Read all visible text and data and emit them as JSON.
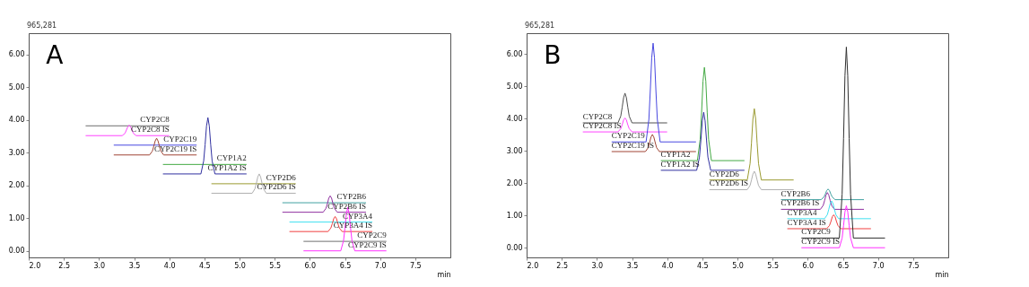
{
  "chart_data": [
    {
      "type": "line",
      "title": "A",
      "xlabel": "min",
      "annotations": [
        "965,281"
      ],
      "xlim": [
        2.0,
        8.0
      ],
      "ylim": [
        -0.2,
        6.65
      ],
      "xticks": [
        {
          "value": 2,
          "label": "2.0"
        },
        {
          "value": 2.5,
          "label": "2.5"
        },
        {
          "value": 3,
          "label": "3.0"
        },
        {
          "value": 3.5,
          "label": "3.5"
        },
        {
          "value": 4,
          "label": "4.0"
        },
        {
          "value": 4.5,
          "label": "4.5"
        },
        {
          "value": 5,
          "label": "5.0"
        },
        {
          "value": 5.5,
          "label": "5.5"
        },
        {
          "value": 6,
          "label": "6.0"
        },
        {
          "value": 6.5,
          "label": "6.5"
        },
        {
          "value": 7,
          "label": "7.0"
        },
        {
          "value": 7.5,
          "label": "7.5"
        }
      ],
      "yticks": [
        {
          "value": 0,
          "label": "0.00"
        },
        {
          "value": 1,
          "label": "1.00"
        },
        {
          "value": 2,
          "label": "2.00"
        },
        {
          "value": 3,
          "label": "3.00"
        },
        {
          "value": 4,
          "label": "4.00"
        },
        {
          "value": 5,
          "label": "5.00"
        },
        {
          "value": 6,
          "label": "6.00"
        }
      ],
      "grid": false,
      "legend": false,
      "series": [
        {
          "name": "CYP2C8",
          "color": "#6e6e6e",
          "x": [
            2.81,
            4.0
          ],
          "values": [
            3.82,
            3.82
          ]
        },
        {
          "name": "CYP2C8 IS",
          "color": "#ff44ff",
          "x": [
            2.81,
            3.33,
            3.37,
            3.39,
            3.41,
            3.43,
            3.45,
            3.47,
            3.49,
            3.53,
            4.0
          ],
          "values": [
            3.52,
            3.52,
            3.59,
            3.69,
            3.79,
            3.84,
            3.79,
            3.69,
            3.59,
            3.52,
            3.52
          ]
        },
        {
          "name": "CYP2C19",
          "color": "#4848e0",
          "x": [
            3.21,
            4.39
          ],
          "values": [
            3.23,
            3.23
          ]
        },
        {
          "name": "CYP2C19 IS",
          "color": "#a04535",
          "x": [
            3.21,
            3.72,
            3.76,
            3.78,
            3.8,
            3.82,
            3.84,
            3.86,
            3.88,
            3.92,
            4.39
          ],
          "values": [
            2.93,
            2.93,
            3.05,
            3.2,
            3.36,
            3.44,
            3.36,
            3.2,
            3.05,
            2.93,
            2.93
          ]
        },
        {
          "name": "CYP1A2",
          "color": "#44aa44",
          "x": [
            3.91,
            5.1
          ],
          "values": [
            2.64,
            2.64
          ]
        },
        {
          "name": "CYP1A2 IS",
          "color": "#3030a0",
          "x": [
            3.91,
            4.45,
            4.49,
            4.51,
            4.53,
            4.55,
            4.57,
            4.59,
            4.61,
            4.65,
            5.1
          ],
          "values": [
            2.35,
            2.35,
            2.75,
            3.24,
            3.81,
            4.07,
            3.81,
            3.24,
            2.75,
            2.35,
            2.35
          ]
        },
        {
          "name": "CYP2D6",
          "color": "#9a9a30",
          "x": [
            4.6,
            5.8
          ],
          "values": [
            2.05,
            2.05
          ]
        },
        {
          "name": "CYP2D6 IS",
          "color": "#b0b0b0",
          "x": [
            4.6,
            5.18,
            5.22,
            5.24,
            5.26,
            5.28,
            5.3,
            5.32,
            5.34,
            5.38,
            5.8
          ],
          "values": [
            1.76,
            1.76,
            1.9,
            2.07,
            2.26,
            2.35,
            2.26,
            2.07,
            1.9,
            1.76,
            1.76
          ]
        },
        {
          "name": "CYP2B6",
          "color": "#40a0a0",
          "x": [
            5.61,
            6.8
          ],
          "values": [
            1.47,
            1.47
          ]
        },
        {
          "name": "CYP2B6 IS",
          "color": "#9030a0",
          "x": [
            5.61,
            6.19,
            6.23,
            6.25,
            6.27,
            6.29,
            6.31,
            6.33,
            6.35,
            6.39,
            6.8
          ],
          "values": [
            1.18,
            1.18,
            1.3,
            1.44,
            1.61,
            1.68,
            1.61,
            1.44,
            1.3,
            1.18,
            1.18
          ]
        },
        {
          "name": "CYP3A4",
          "color": "#40e0f0",
          "x": [
            5.71,
            6.89
          ],
          "values": [
            0.88,
            0.88
          ]
        },
        {
          "name": "CYP3A4 IS",
          "color": "#f04040",
          "x": [
            5.71,
            6.26,
            6.3,
            6.32,
            6.34,
            6.36,
            6.38,
            6.4,
            6.42,
            6.46,
            6.89
          ],
          "values": [
            0.59,
            0.59,
            0.7,
            0.83,
            0.98,
            1.05,
            0.98,
            0.83,
            0.7,
            0.59,
            0.59
          ]
        },
        {
          "name": "CYP2C9",
          "color": "#707070",
          "x": [
            5.91,
            7.09
          ],
          "values": [
            0.29,
            0.29
          ]
        },
        {
          "name": "CYP2C9 IS",
          "color": "#ff30ff",
          "x": [
            5.91,
            6.44,
            6.48,
            6.5,
            6.52,
            6.54,
            6.56,
            6.58,
            6.6,
            6.64,
            7.09
          ],
          "values": [
            0,
            0,
            0.31,
            0.69,
            1.13,
            1.33,
            1.13,
            0.69,
            0.31,
            0,
            0
          ]
        }
      ]
    },
    {
      "type": "line",
      "title": "B",
      "xlabel": "min",
      "annotations": [
        "965,281"
      ],
      "xlim": [
        2.0,
        8.0
      ],
      "ylim": [
        -0.3,
        6.65
      ],
      "xticks": [
        {
          "value": 2,
          "label": "2.0"
        },
        {
          "value": 2.5,
          "label": "2.5"
        },
        {
          "value": 3,
          "label": "3.0"
        },
        {
          "value": 3.5,
          "label": "3.5"
        },
        {
          "value": 4,
          "label": "4.0"
        },
        {
          "value": 4.5,
          "label": "4.5"
        },
        {
          "value": 5,
          "label": "5.0"
        },
        {
          "value": 5.5,
          "label": "5.5"
        },
        {
          "value": 6,
          "label": "6.0"
        },
        {
          "value": 6.5,
          "label": "6.5"
        },
        {
          "value": 7,
          "label": "7.0"
        },
        {
          "value": 7.5,
          "label": "7.5"
        }
      ],
      "yticks": [
        {
          "value": 0,
          "label": "0.00"
        },
        {
          "value": 1,
          "label": "1.00"
        },
        {
          "value": 2,
          "label": "2.00"
        },
        {
          "value": 3,
          "label": "3.00"
        },
        {
          "value": 4,
          "label": "4.00"
        },
        {
          "value": 5,
          "label": "5.00"
        },
        {
          "value": 6,
          "label": "6.00"
        }
      ],
      "grid": false,
      "legend": false,
      "series": [
        {
          "name": "CYP2C8",
          "color": "#505050",
          "x": [
            2.8,
            3.3,
            3.34,
            3.36,
            3.38,
            3.4,
            3.42,
            3.44,
            3.46,
            3.5,
            4.0
          ],
          "values": [
            3.87,
            3.87,
            4.08,
            4.35,
            4.65,
            4.79,
            4.65,
            4.35,
            4.08,
            3.87,
            3.87
          ]
        },
        {
          "name": "CYP2C8 IS",
          "color": "#ff44ff",
          "x": [
            2.8,
            3.3,
            3.34,
            3.36,
            3.38,
            3.4,
            3.42,
            3.44,
            3.46,
            3.5,
            4.0
          ],
          "values": [
            3.59,
            3.59,
            3.69,
            3.81,
            3.96,
            4.02,
            3.96,
            3.81,
            3.69,
            3.59,
            3.59
          ]
        },
        {
          "name": "CYP2C19",
          "color": "#4848e0",
          "x": [
            3.21,
            3.7,
            3.74,
            3.76,
            3.78,
            3.8,
            3.82,
            3.84,
            3.86,
            3.9,
            4.41
          ],
          "values": [
            3.28,
            3.28,
            3.98,
            4.87,
            5.88,
            6.34,
            5.88,
            4.87,
            3.98,
            3.28,
            3.28
          ]
        },
        {
          "name": "CYP2C19 IS",
          "color": "#a04535",
          "x": [
            3.21,
            3.69,
            3.73,
            3.75,
            3.77,
            3.79,
            3.81,
            3.83,
            3.85,
            3.89,
            4.41
          ],
          "values": [
            2.98,
            2.98,
            3.1,
            3.26,
            3.43,
            3.51,
            3.43,
            3.26,
            3.1,
            2.98,
            2.98
          ]
        },
        {
          "name": "CYP1A2",
          "color": "#44aa44",
          "x": [
            3.91,
            4.43,
            4.47,
            4.49,
            4.51,
            4.53,
            4.55,
            4.57,
            4.59,
            4.63,
            5.1
          ],
          "values": [
            2.7,
            2.7,
            3.36,
            4.2,
            5.16,
            5.59,
            5.16,
            4.2,
            3.36,
            2.7,
            2.7
          ]
        },
        {
          "name": "CYP1A2 IS",
          "color": "#3030a0",
          "x": [
            3.91,
            4.42,
            4.46,
            4.48,
            4.5,
            4.52,
            4.54,
            4.56,
            4.58,
            4.62,
            5.1
          ],
          "values": [
            2.4,
            2.4,
            2.81,
            3.34,
            3.93,
            4.2,
            3.93,
            3.34,
            2.81,
            2.4,
            2.4
          ]
        },
        {
          "name": "CYP2D6",
          "color": "#9a9a30",
          "x": [
            4.6,
            5.14,
            5.18,
            5.2,
            5.22,
            5.24,
            5.26,
            5.28,
            5.3,
            5.34,
            5.8
          ],
          "values": [
            2.1,
            2.1,
            2.61,
            3.25,
            3.98,
            4.31,
            3.98,
            3.25,
            2.61,
            2.1,
            2.1
          ]
        },
        {
          "name": "CYP2D6 IS",
          "color": "#b0b0b0",
          "x": [
            4.6,
            5.14,
            5.18,
            5.2,
            5.22,
            5.24,
            5.26,
            5.28,
            5.3,
            5.34,
            5.8
          ],
          "values": [
            1.8,
            1.8,
            1.93,
            2.1,
            2.28,
            2.37,
            2.28,
            2.1,
            1.93,
            1.8,
            1.8
          ]
        },
        {
          "name": "CYP2B6",
          "color": "#40a0a0",
          "x": [
            5.62,
            6.19,
            6.23,
            6.25,
            6.27,
            6.29,
            6.31,
            6.33,
            6.35,
            6.39,
            6.8
          ],
          "values": [
            1.49,
            1.49,
            1.57,
            1.66,
            1.77,
            1.82,
            1.77,
            1.66,
            1.57,
            1.49,
            1.49
          ]
        },
        {
          "name": "CYP2B6 IS",
          "color": "#9030a0",
          "x": [
            5.62,
            6.18,
            6.22,
            6.24,
            6.26,
            6.28,
            6.3,
            6.32,
            6.34,
            6.38,
            6.8
          ],
          "values": [
            1.19,
            1.19,
            1.31,
            1.46,
            1.63,
            1.71,
            1.63,
            1.46,
            1.31,
            1.19,
            1.19
          ]
        },
        {
          "name": "CYP3A4",
          "color": "#40e0f0",
          "x": [
            5.71,
            6.24,
            6.28,
            6.3,
            6.32,
            6.34,
            6.36,
            6.38,
            6.4,
            6.44,
            6.9
          ],
          "values": [
            0.9,
            0.9,
            1.03,
            1.19,
            1.37,
            1.45,
            1.37,
            1.19,
            1.03,
            0.9,
            0.9
          ]
        },
        {
          "name": "CYP3A4 IS",
          "color": "#f04040",
          "x": [
            5.71,
            6.27,
            6.31,
            6.33,
            6.35,
            6.37,
            6.39,
            6.41,
            6.43,
            6.47,
            6.9
          ],
          "values": [
            0.59,
            0.59,
            0.69,
            0.81,
            0.96,
            1.02,
            0.96,
            0.81,
            0.69,
            0.59,
            0.59
          ]
        },
        {
          "name": "CYP2C9",
          "color": "#303030",
          "x": [
            5.91,
            6.45,
            6.49,
            6.51,
            6.53,
            6.55,
            6.57,
            6.59,
            6.61,
            6.65,
            7.1
          ],
          "values": [
            0.3,
            0.3,
            1.66,
            3.38,
            5.33,
            6.22,
            5.33,
            3.38,
            1.66,
            0.3,
            0.3
          ]
        },
        {
          "name": "CYP2C9 IS",
          "color": "#ff30ff",
          "x": [
            5.91,
            6.45,
            6.49,
            6.51,
            6.53,
            6.55,
            6.57,
            6.59,
            6.61,
            6.65,
            7.1
          ],
          "values": [
            0,
            0,
            0.3,
            0.68,
            1.11,
            1.3,
            1.11,
            0.68,
            0.3,
            0,
            0
          ]
        }
      ]
    }
  ]
}
